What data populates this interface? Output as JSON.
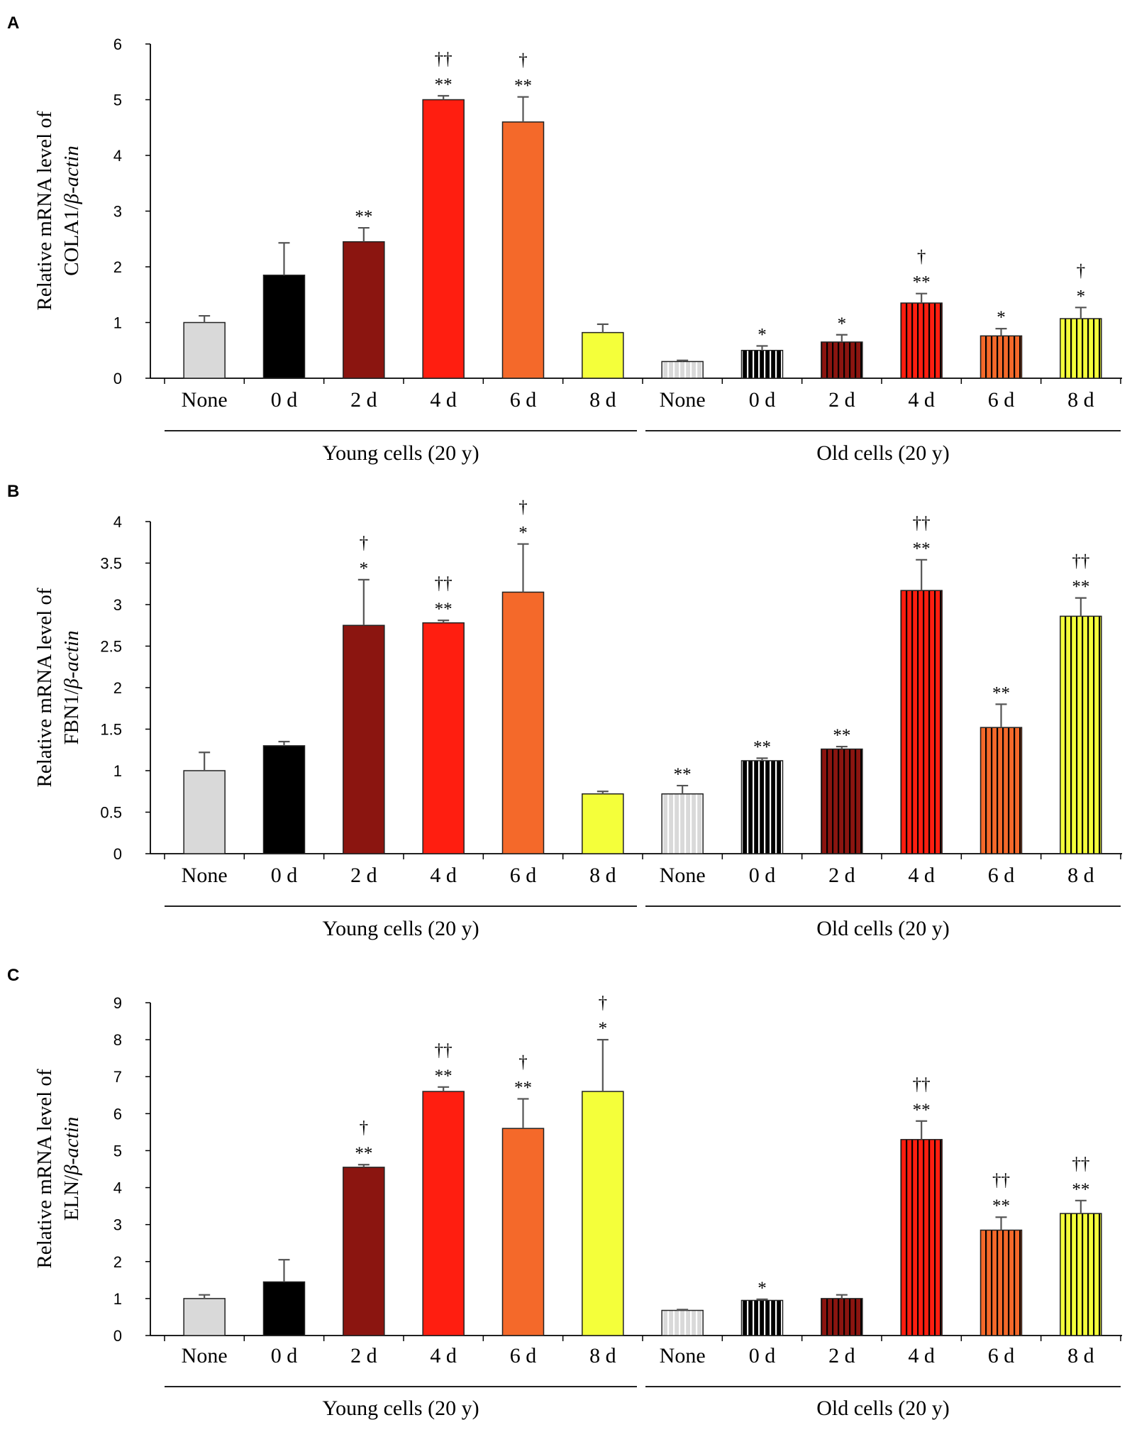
{
  "chart_data": [
    {
      "panel": "A",
      "type": "bar",
      "ylabel_line1": "Relative mRNA level of",
      "ylabel_gene": "COLA1/",
      "ylabel_beta": "β",
      "ylabel_actin": "-actin",
      "ylim": [
        0,
        6
      ],
      "yticks": [
        "0",
        "1",
        "2",
        "3",
        "4",
        "5",
        "6"
      ],
      "groups": [
        "Young cells (20 y)",
        "Old cells (20 y)"
      ],
      "categories": [
        "None",
        "0 d",
        "2 d",
        "4 d",
        "6 d",
        "8 d",
        "None",
        "0 d",
        "2 d",
        "4 d",
        "6 d",
        "8 d"
      ],
      "values": [
        1.0,
        1.85,
        2.45,
        5.0,
        4.6,
        0.82,
        0.3,
        0.5,
        0.65,
        1.35,
        0.76,
        1.07
      ],
      "errors": [
        0.12,
        0.58,
        0.25,
        0.07,
        0.45,
        0.15,
        0.02,
        0.08,
        0.13,
        0.17,
        0.13,
        0.2
      ],
      "sig_star": [
        "",
        "",
        "**",
        "**",
        "**",
        "",
        "",
        "*",
        "*",
        "**",
        "*",
        "*"
      ],
      "sig_dagger": [
        "",
        "",
        "",
        "††",
        "†",
        "",
        "",
        "",
        "",
        "†",
        "",
        "†"
      ]
    },
    {
      "panel": "B",
      "type": "bar",
      "ylabel_line1": "Relative mRNA level of",
      "ylabel_gene": "FBN1/",
      "ylabel_beta": "β",
      "ylabel_actin": "-actin",
      "ylim": [
        0,
        4
      ],
      "yticks": [
        "0",
        "0.5",
        "1",
        "1.5",
        "2",
        "2.5",
        "3",
        "3.5",
        "4"
      ],
      "groups": [
        "Young cells (20 y)",
        "Old cells (20 y)"
      ],
      "categories": [
        "None",
        "0 d",
        "2 d",
        "4 d",
        "6 d",
        "8 d",
        "None",
        "0 d",
        "2 d",
        "4 d",
        "6 d",
        "8 d"
      ],
      "values": [
        1.0,
        1.3,
        2.75,
        2.78,
        3.15,
        0.72,
        0.72,
        1.12,
        1.26,
        3.17,
        1.52,
        2.86
      ],
      "errors": [
        0.22,
        0.05,
        0.55,
        0.03,
        0.58,
        0.03,
        0.1,
        0.03,
        0.03,
        0.37,
        0.28,
        0.22
      ],
      "sig_star": [
        "",
        "",
        "*",
        "**",
        "*",
        "",
        "**",
        "**",
        "**",
        "**",
        "**",
        "**"
      ],
      "sig_dagger": [
        "",
        "",
        "†",
        "††",
        "†",
        "",
        "",
        "",
        "",
        "††",
        "",
        "††"
      ]
    },
    {
      "panel": "C",
      "type": "bar",
      "ylabel_line1": "Relative mRNA level of",
      "ylabel_gene": "ELN/",
      "ylabel_beta": "β",
      "ylabel_actin": "-actin",
      "ylim": [
        0,
        9
      ],
      "yticks": [
        "0",
        "1",
        "2",
        "3",
        "4",
        "5",
        "6",
        "7",
        "8",
        "9"
      ],
      "groups": [
        "Young cells (20 y)",
        "Old cells (20 y)"
      ],
      "categories": [
        "None",
        "0 d",
        "2 d",
        "4 d",
        "6 d",
        "8 d",
        "None",
        "0 d",
        "2 d",
        "4 d",
        "6 d",
        "8 d"
      ],
      "values": [
        1.0,
        1.45,
        4.55,
        6.6,
        5.6,
        6.6,
        0.68,
        0.95,
        1.0,
        5.3,
        2.85,
        3.3
      ],
      "errors": [
        0.1,
        0.6,
        0.07,
        0.12,
        0.8,
        1.4,
        0.02,
        0.03,
        0.1,
        0.5,
        0.35,
        0.35
      ],
      "sig_star": [
        "",
        "",
        "**",
        "**",
        "**",
        "*",
        "",
        "*",
        "",
        "**",
        "**",
        "**"
      ],
      "sig_dagger": [
        "",
        "",
        "†",
        "††",
        "†",
        "†",
        "",
        "",
        "",
        "††",
        "††",
        "††"
      ]
    }
  ],
  "colors": {
    "bars": [
      "#d9d9d9",
      "#000000",
      "#8b1510",
      "#ff1e10",
      "#f4692a",
      "#f4ff3a"
    ],
    "axis": "#000000",
    "error_bar": "#555555"
  }
}
